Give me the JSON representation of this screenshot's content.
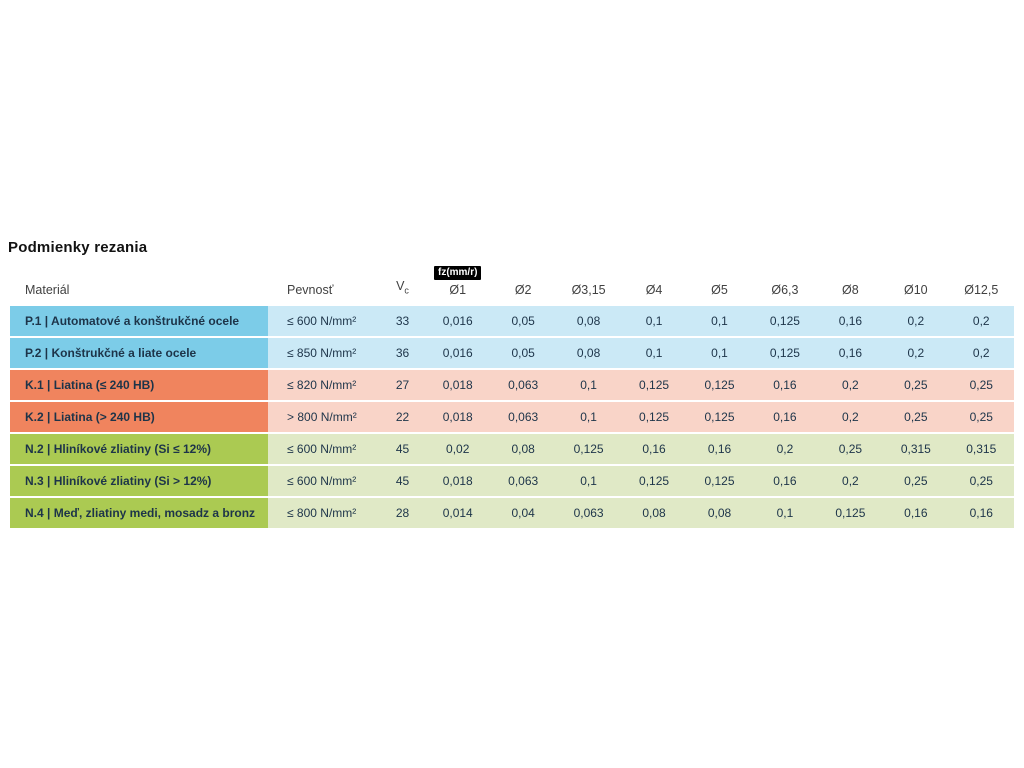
{
  "chart_data": {
    "type": "table",
    "title": "Podmienky rezania",
    "header": {
      "material": "Materiál",
      "strength": "Pevnosť",
      "vc_symbol": "V",
      "vc_subscript": "c",
      "fz_unit_badge": "fz(mm/r)",
      "diameters": [
        "Ø1",
        "Ø2",
        "Ø3,15",
        "Ø4",
        "Ø5",
        "Ø6,3",
        "Ø8",
        "Ø10",
        "Ø12,5"
      ]
    },
    "rows": [
      {
        "group": "P",
        "material": "P.1 | Automatové a konštrukčné ocele",
        "strength": "≤ 600 N/mm²",
        "vc": "33",
        "fz_values": [
          "0,016",
          "0,05",
          "0,08",
          "0,1",
          "0,1",
          "0,125",
          "0,16",
          "0,2",
          "0,2"
        ]
      },
      {
        "group": "P",
        "material": "P.2 | Konštrukčné a liate ocele",
        "strength": "≤ 850 N/mm²",
        "vc": "36",
        "fz_values": [
          "0,016",
          "0,05",
          "0,08",
          "0,1",
          "0,1",
          "0,125",
          "0,16",
          "0,2",
          "0,2"
        ]
      },
      {
        "group": "K",
        "material": "K.1 | Liatina (≤ 240 HB)",
        "strength": "≤ 820 N/mm²",
        "vc": "27",
        "fz_values": [
          "0,018",
          "0,063",
          "0,1",
          "0,125",
          "0,125",
          "0,16",
          "0,2",
          "0,25",
          "0,25"
        ]
      },
      {
        "group": "K",
        "material": "K.2 | Liatina (> 240 HB)",
        "strength": "> 800 N/mm²",
        "vc": "22",
        "fz_values": [
          "0,018",
          "0,063",
          "0,1",
          "0,125",
          "0,125",
          "0,16",
          "0,2",
          "0,25",
          "0,25"
        ]
      },
      {
        "group": "N",
        "material": "N.2 | Hliníkové zliatiny (Si ≤ 12%)",
        "strength": "≤ 600 N/mm²",
        "vc": "45",
        "fz_values": [
          "0,02",
          "0,08",
          "0,125",
          "0,16",
          "0,16",
          "0,2",
          "0,25",
          "0,315",
          "0,315"
        ]
      },
      {
        "group": "N",
        "material": "N.3 | Hliníkové zliatiny (Si > 12%)",
        "strength": "≤ 600 N/mm²",
        "vc": "45",
        "fz_values": [
          "0,018",
          "0,063",
          "0,1",
          "0,125",
          "0,125",
          "0,16",
          "0,2",
          "0,25",
          "0,25"
        ]
      },
      {
        "group": "N",
        "material": "N.4 | Meď, zliatiny medi, mosadz a bronz",
        "strength": "≤ 800 N/mm²",
        "vc": "28",
        "fz_values": [
          "0,014",
          "0,04",
          "0,063",
          "0,08",
          "0,08",
          "0,1",
          "0,125",
          "0,16",
          "0,16"
        ]
      }
    ]
  },
  "colors": {
    "P": {
      "dark": "#7ccce8",
      "light": "#cbe9f6"
    },
    "K": {
      "dark": "#f0845e",
      "light": "#f9d4c8"
    },
    "N": {
      "dark": "#abca52",
      "light": "#e0e9c6"
    },
    "text": "#1d3449",
    "header_text": "#414141",
    "badge_bg": "#000000",
    "badge_text": "#ffffff"
  }
}
